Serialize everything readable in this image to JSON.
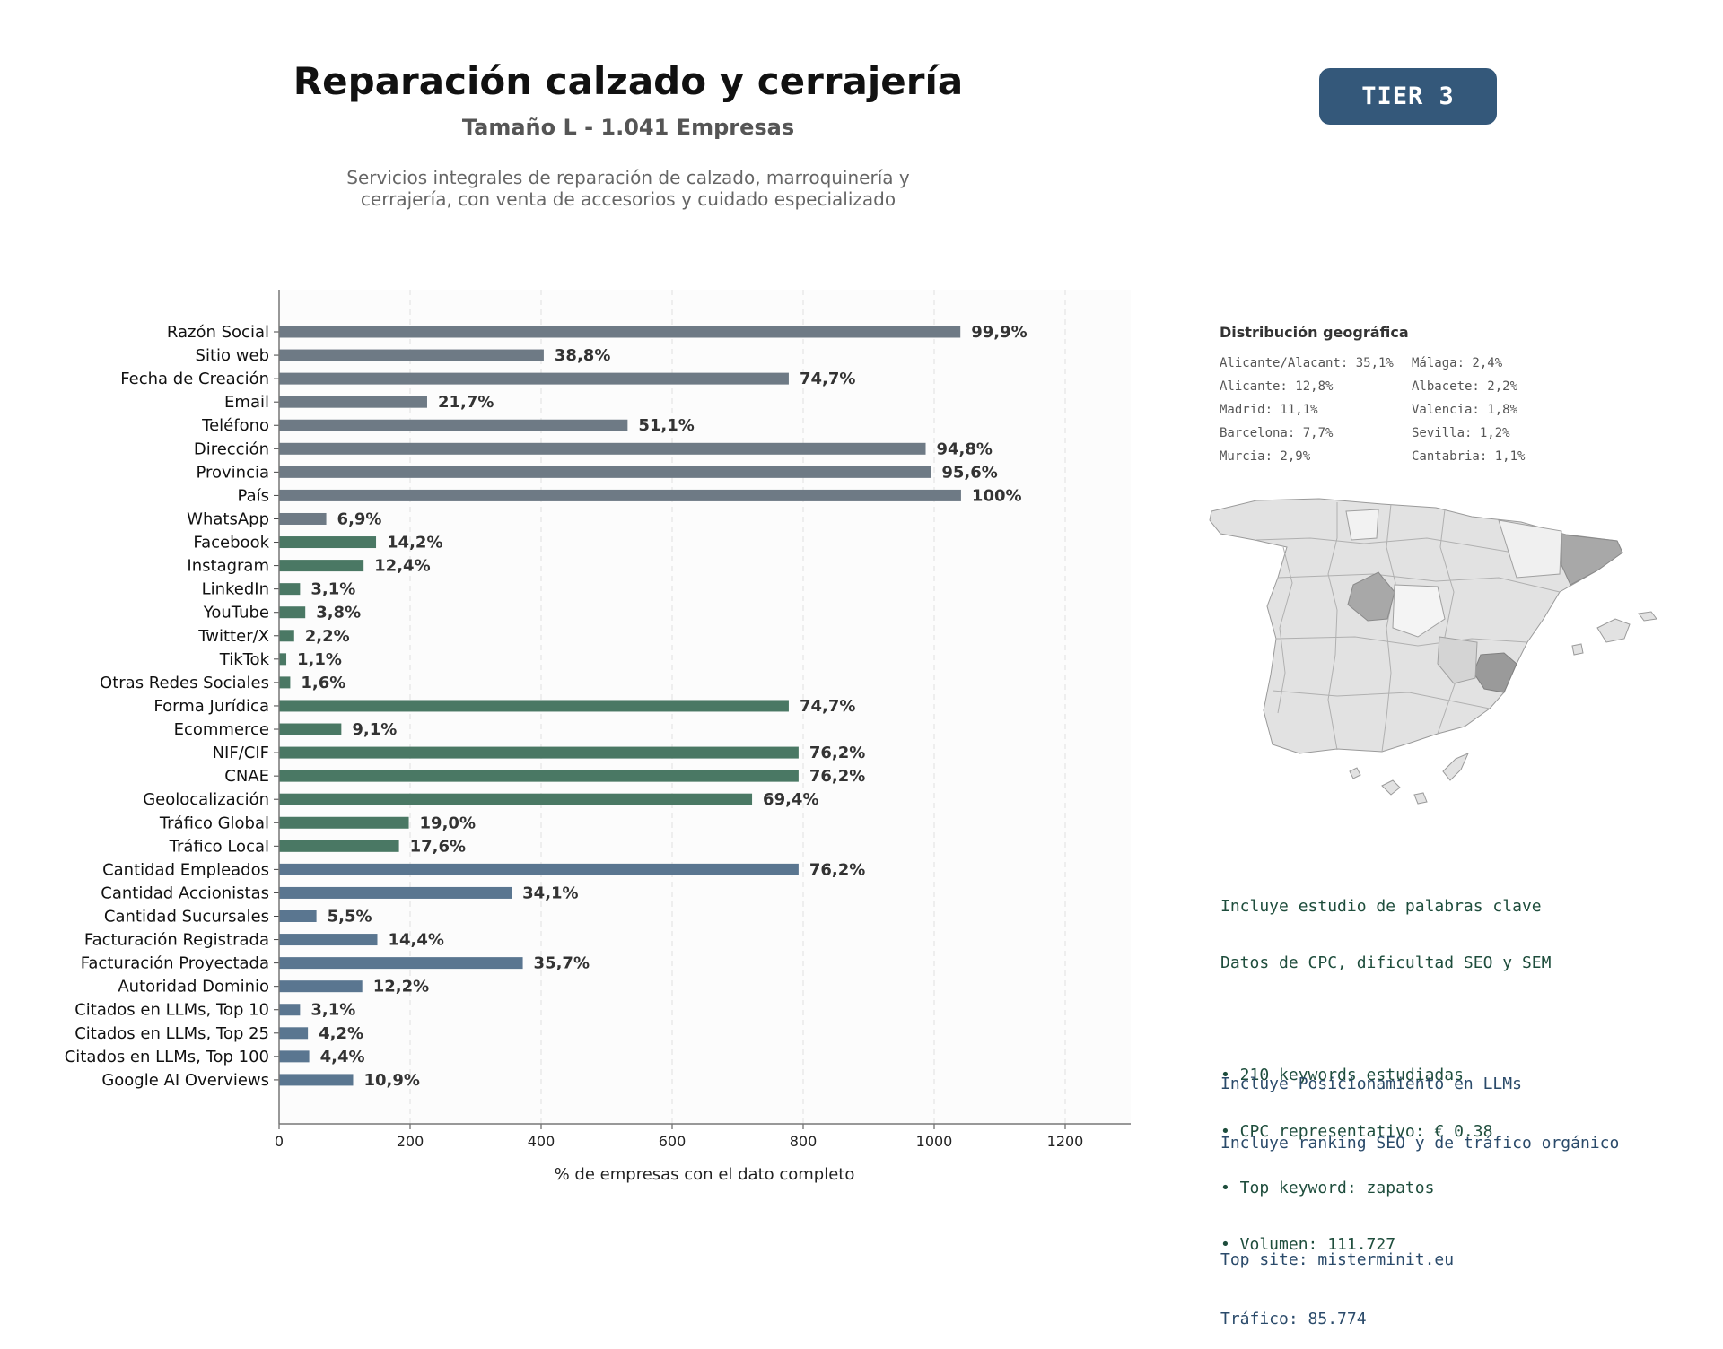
{
  "header": {
    "title": "Reparación calzado y cerrajería",
    "subtitle": "Tamaño L - 1.041 Empresas",
    "description_line1": "Servicios integrales de reparación de calzado, marroquinería y",
    "description_line2": "cerrajería, con venta de accesorios y cuidado especializado",
    "tier_label": "TIER 3"
  },
  "colors": {
    "basic": "#6e7a85",
    "digital": "#4a7864",
    "business": "#5a7690",
    "tier_badge": "#34587a",
    "map_base": "#e2e2e2",
    "map_highlight": "#a8a8a8"
  },
  "chart_data": {
    "type": "bar",
    "orientation": "horizontal",
    "xlabel": "% de empresas con el dato completo",
    "xlim": [
      0,
      1300
    ],
    "xticks": [
      0,
      200,
      400,
      600,
      800,
      1000,
      1200
    ],
    "grid": "vertical dashed",
    "categories": [
      "Razón Social",
      "Sitio web",
      "Fecha de Creación",
      "Email",
      "Teléfono",
      "Dirección",
      "Provincia",
      "País",
      "WhatsApp",
      "Facebook",
      "Instagram",
      "LinkedIn",
      "YouTube",
      "Twitter/X",
      "TikTok",
      "Otras Redes Sociales",
      "Forma Jurídica",
      "Ecommerce",
      "NIF/CIF",
      "CNAE",
      "Geolocalización",
      "Tráfico Global",
      "Tráfico Local",
      "Cantidad Empleados",
      "Cantidad Accionistas",
      "Cantidad Sucursales",
      "Facturación Registrada",
      "Facturación Proyectada",
      "Autoridad Dominio",
      "Citados en LLMs, Top 10",
      "Citados en LLMs, Top 25",
      "Citados en LLMs, Top 100",
      "Google AI Overviews"
    ],
    "values": [
      1040,
      404,
      778,
      226,
      532,
      987,
      995,
      1041,
      72,
      148,
      129,
      32,
      40,
      23,
      11,
      17,
      778,
      95,
      793,
      793,
      722,
      198,
      183,
      793,
      355,
      57,
      150,
      372,
      127,
      32,
      44,
      46,
      113
    ],
    "labels": [
      "99,9%",
      "38,8%",
      "74,7%",
      "21,7%",
      "51,1%",
      "94,8%",
      "95,6%",
      "100%",
      "6,9%",
      "14,2%",
      "12,4%",
      "3,1%",
      "3,8%",
      "2,2%",
      "1,1%",
      "1,6%",
      "74,7%",
      "9,1%",
      "76,2%",
      "76,2%",
      "69,4%",
      "19,0%",
      "17,6%",
      "76,2%",
      "34,1%",
      "5,5%",
      "14,4%",
      "35,7%",
      "12,2%",
      "3,1%",
      "4,2%",
      "4,4%",
      "10,9%"
    ],
    "groups": [
      "basic",
      "basic",
      "basic",
      "basic",
      "basic",
      "basic",
      "basic",
      "basic",
      "basic",
      "digital",
      "digital",
      "digital",
      "digital",
      "digital",
      "digital",
      "digital",
      "digital",
      "digital",
      "digital",
      "digital",
      "digital",
      "digital",
      "digital",
      "business",
      "business",
      "business",
      "business",
      "business",
      "business",
      "business",
      "business",
      "business",
      "business"
    ]
  },
  "geo": {
    "title": "Distribución geográfica",
    "col1": [
      "Alicante/Alacant: 35,1%",
      "Alicante: 12,8%",
      "Madrid: 11,1%",
      "Barcelona: 7,7%",
      "Murcia: 2,9%"
    ],
    "col2": [
      "Málaga: 2,4%",
      "Albacete: 2,2%",
      "Valencia: 1,8%",
      "Sevilla: 1,2%",
      "Cantabria: 1,1%"
    ]
  },
  "keywords": {
    "line1": "Incluye estudio de palabras clave",
    "line2": "Datos de CPC, dificultad SEO y SEM",
    "bullet1": "• 210 keywords estudiadas",
    "bullet2": "• CPC representativo: € 0.38",
    "bullet3": "• Top keyword: zapatos",
    "bullet4": "• Volumen: 111.727"
  },
  "llm": {
    "line1": "Incluye Posicionamiento en LLMs",
    "line2": "Incluye ranking SEO y de tráfico orgánico",
    "top_site": "Top site: misterminit.eu",
    "traffic": "Tráfico: 85.774"
  }
}
